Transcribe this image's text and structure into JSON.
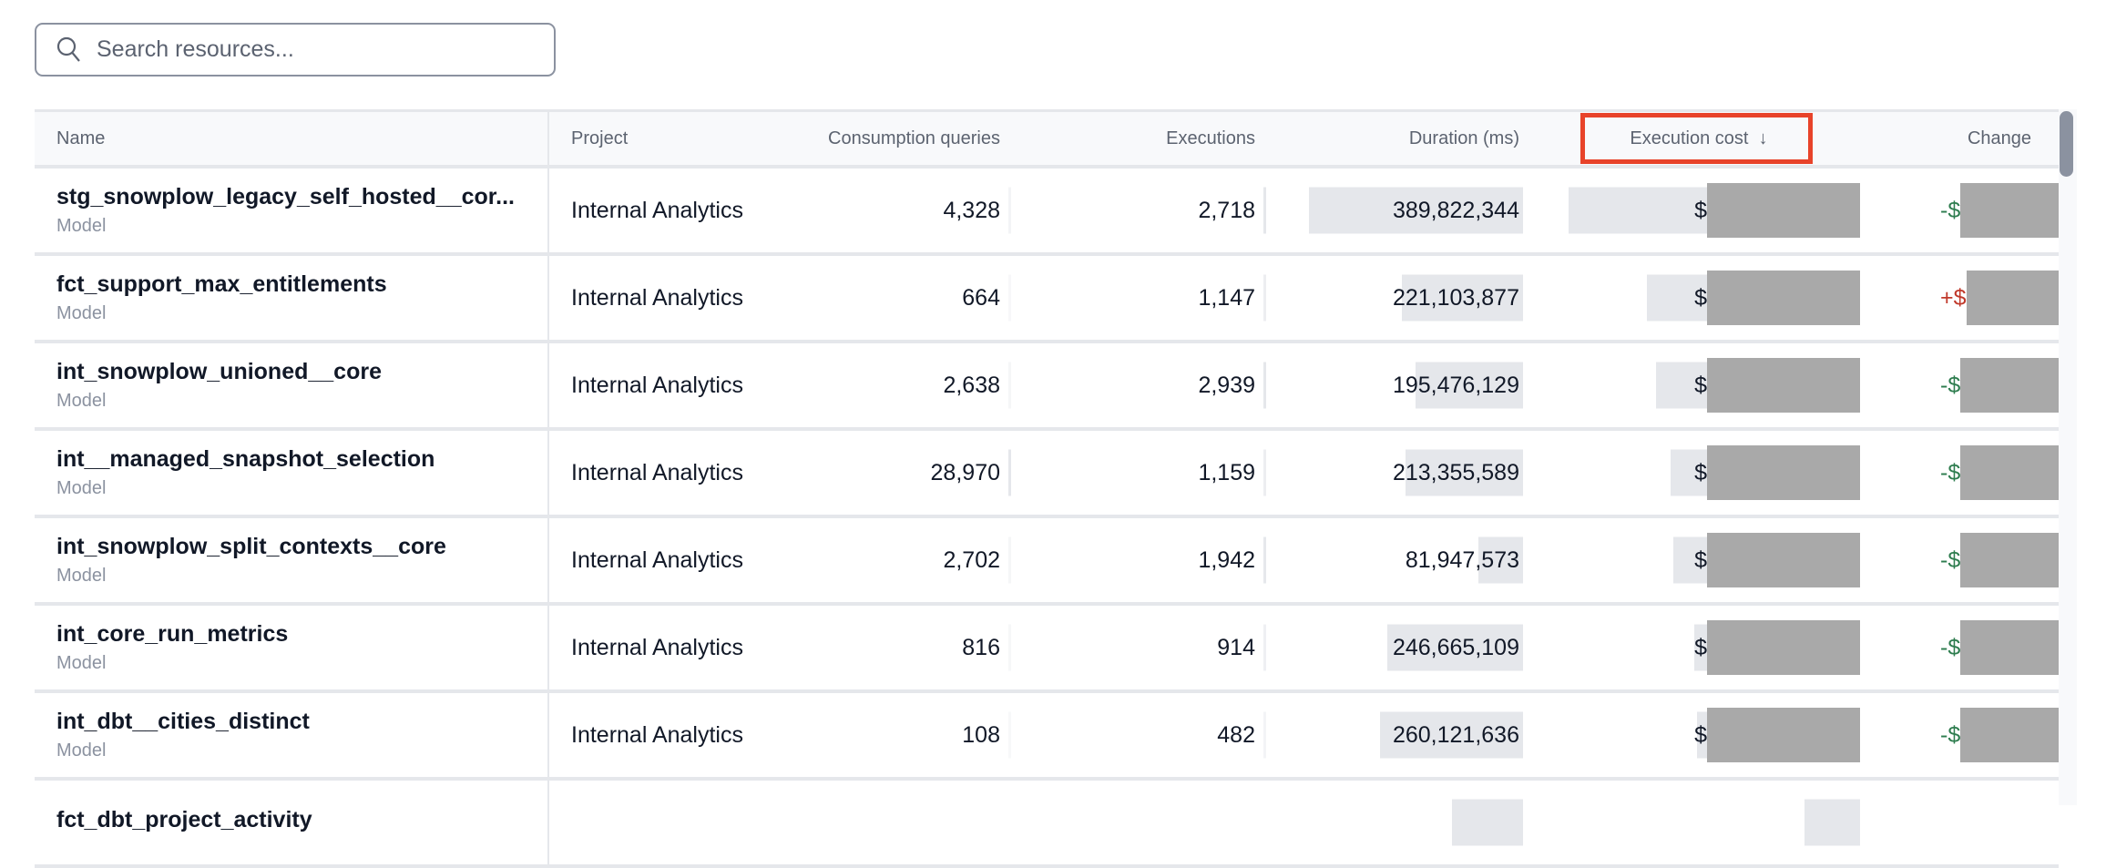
{
  "search": {
    "placeholder": "Search resources...",
    "icon": "search-icon"
  },
  "columns": {
    "name": "Name",
    "project": "Project",
    "consumption": "Consumption queries",
    "executions": "Executions",
    "duration": "Duration (ms)",
    "cost": "Execution cost",
    "cost_sort": "↓",
    "change": "Change"
  },
  "colors": {
    "highlight": "#e8432a",
    "negative": "#2e7d4f",
    "positive": "#c0392b",
    "bar": "#e5e7eb",
    "redaction": "#a9a9a9"
  },
  "rows": [
    {
      "name": "stg_snowplow_legacy_self_hosted__cor...",
      "type": "Model",
      "project": "Internal Analytics",
      "consumption": "4,328",
      "executions": "2,718",
      "duration": "389,822,344",
      "cost_prefix": "$",
      "cost_bar": 1.0,
      "change_prefix": "-$",
      "change_sign": "neg"
    },
    {
      "name": "fct_support_max_entitlements",
      "type": "Model",
      "project": "Internal Analytics",
      "consumption": "664",
      "executions": "1,147",
      "duration": "221,103,877",
      "cost_prefix": "$",
      "cost_bar": 0.73,
      "change_prefix": "+$",
      "change_sign": "pos"
    },
    {
      "name": "int_snowplow_unioned__core",
      "type": "Model",
      "project": "Internal Analytics",
      "consumption": "2,638",
      "executions": "2,939",
      "duration": "195,476,129",
      "cost_prefix": "$",
      "cost_bar": 0.7,
      "change_prefix": "-$",
      "change_sign": "neg"
    },
    {
      "name": "int__managed_snapshot_selection",
      "type": "Model",
      "project": "Internal Analytics",
      "consumption": "28,970",
      "executions": "1,159",
      "duration": "213,355,589",
      "cost_prefix": "$",
      "cost_bar": 0.65,
      "change_prefix": "-$",
      "change_sign": "neg"
    },
    {
      "name": "int_snowplow_split_contexts__core",
      "type": "Model",
      "project": "Internal Analytics",
      "consumption": "2,702",
      "executions": "1,942",
      "duration": "81,947,573",
      "cost_prefix": "$",
      "cost_bar": 0.64,
      "change_prefix": "-$",
      "change_sign": "neg"
    },
    {
      "name": "int_core_run_metrics",
      "type": "Model",
      "project": "Internal Analytics",
      "consumption": "816",
      "executions": "914",
      "duration": "246,665,109",
      "cost_prefix": "$",
      "cost_bar": 0.57,
      "change_prefix": "-$",
      "change_sign": "neg"
    },
    {
      "name": "int_dbt__cities_distinct",
      "type": "Model",
      "project": "Internal Analytics",
      "consumption": "108",
      "executions": "482",
      "duration": "260,121,636",
      "cost_prefix": "$",
      "cost_bar": 0.56,
      "change_prefix": "-$",
      "change_sign": "neg"
    },
    {
      "name": "fct_dbt_project_activity",
      "type": "",
      "project": "",
      "consumption": "",
      "executions": "",
      "duration": "",
      "duration_bar": 0.33,
      "cost_prefix": "",
      "cost_bar": 0.19,
      "change_prefix": "",
      "change_sign": "neg"
    }
  ]
}
